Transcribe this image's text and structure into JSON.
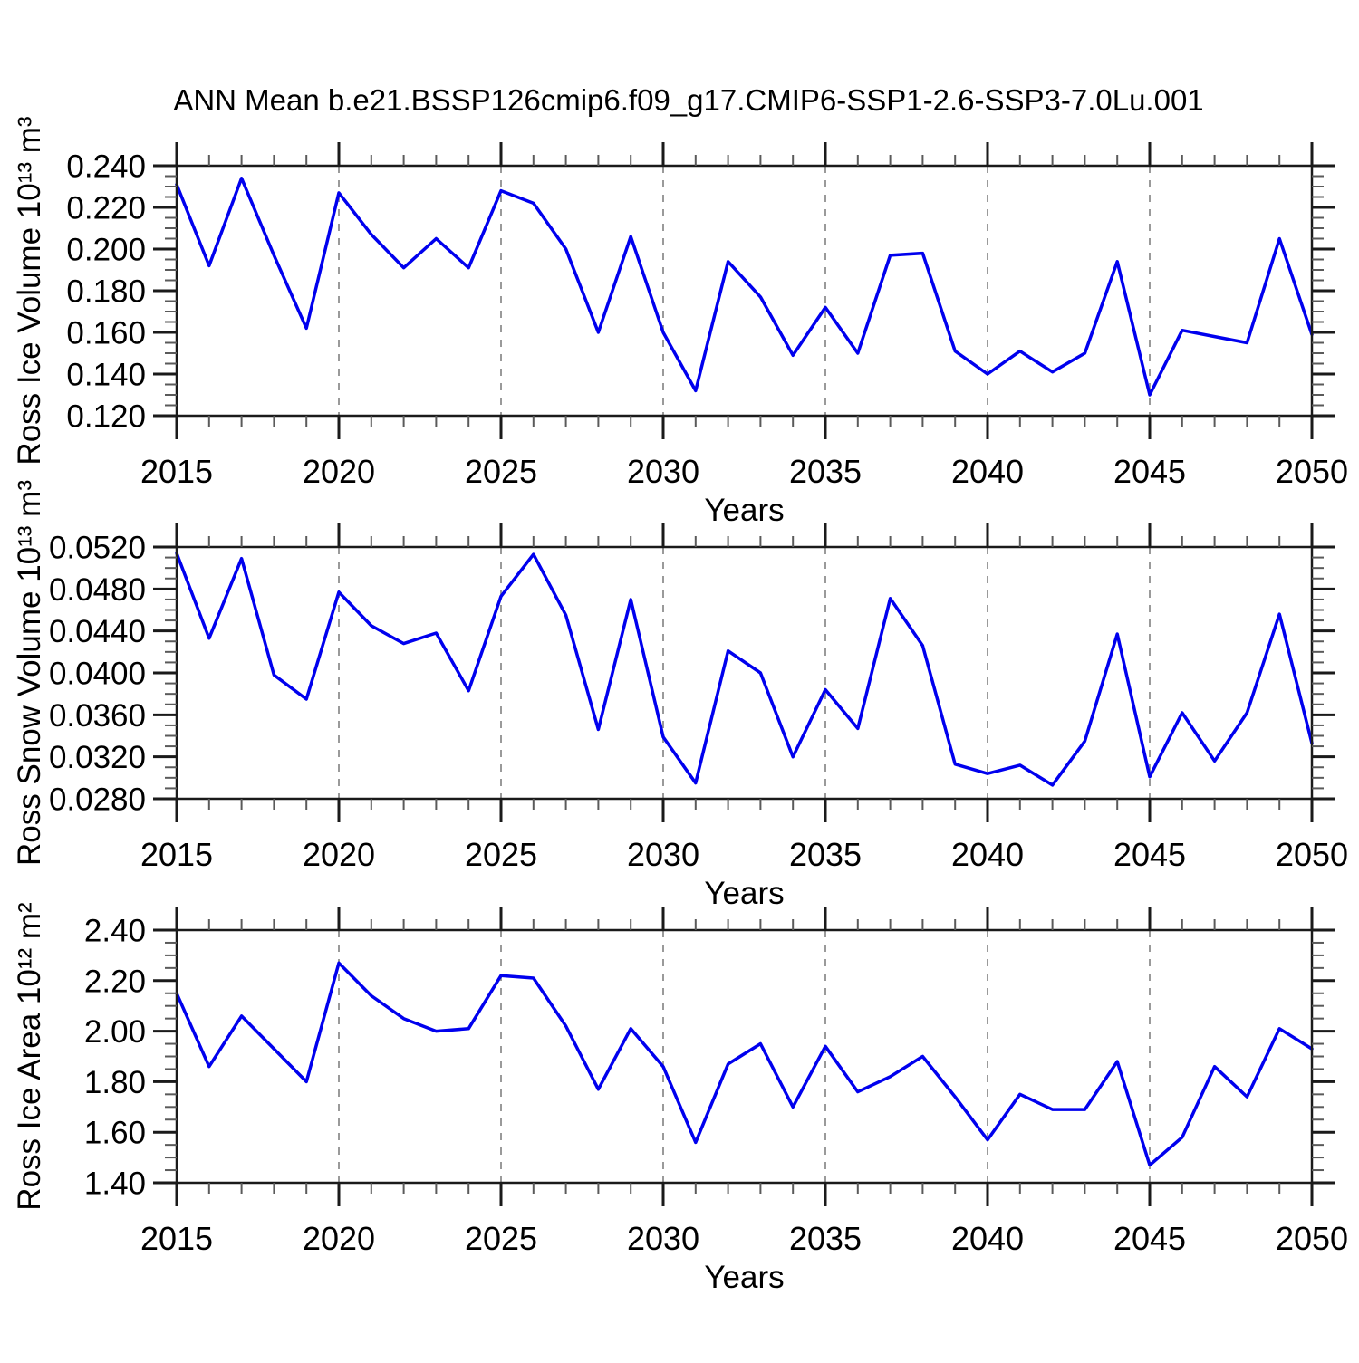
{
  "page": {
    "title": "ANN Mean b.e21.BSSP126cmip6.f09_g17.CMIP6-SSP1-2.6-SSP3-7.0Lu.001",
    "background": "#ffffff"
  },
  "style": {
    "line_color": "#0000ee",
    "axis_color": "#1a1a1a",
    "major_tick_color": "#1a1a1a",
    "minor_tick_color": "#5a5a5a",
    "grid_color": "#9a9a9a",
    "text_color": "#000000"
  },
  "chart_data": [
    {
      "id": "ross-ice-volume",
      "type": "line",
      "ylabel": "Ross Ice Volume 10¹³ m³",
      "xlabel": "Years",
      "x_start": 2015,
      "x_end": 2050,
      "x_major_step": 5,
      "x_minor_step": 1,
      "x_tick_labels": [
        "2015",
        "2020",
        "2025",
        "2030",
        "2035",
        "2040",
        "2045",
        "2050"
      ],
      "ylim": [
        0.12,
        0.24
      ],
      "y_major_step": 0.02,
      "y_minor_divs": 4,
      "y_tick_values": [
        0.24,
        0.22,
        0.2,
        0.18,
        0.16,
        0.14,
        0.12
      ],
      "y_tick_labels": [
        "0.240",
        "0.220",
        "0.200",
        "0.180",
        "0.160",
        "0.140",
        "0.120"
      ],
      "grid_x": [
        2020,
        2025,
        2030,
        2035,
        2040,
        2045
      ],
      "grid_style": "dashed",
      "values": [
        0.231,
        0.192,
        0.234,
        0.197,
        0.162,
        0.227,
        0.207,
        0.191,
        0.205,
        0.191,
        0.228,
        0.222,
        0.2,
        0.16,
        0.206,
        0.16,
        0.132,
        0.194,
        0.177,
        0.149,
        0.172,
        0.15,
        0.197,
        0.198,
        0.151,
        0.14,
        0.151,
        0.141,
        0.15,
        0.194,
        0.13,
        0.161,
        0.158,
        0.155,
        0.205,
        0.159
      ]
    },
    {
      "id": "ross-snow-volume",
      "type": "line",
      "ylabel": "Ross Snow Volume 10¹³ m³",
      "xlabel": "Years",
      "x_start": 2015,
      "x_end": 2050,
      "x_major_step": 5,
      "x_minor_step": 1,
      "x_tick_labels": [
        "2015",
        "2020",
        "2025",
        "2030",
        "2035",
        "2040",
        "2045",
        "2050"
      ],
      "ylim": [
        0.028,
        0.052
      ],
      "y_major_step": 0.004,
      "y_minor_divs": 4,
      "y_tick_values": [
        0.052,
        0.048,
        0.044,
        0.04,
        0.036,
        0.032,
        0.028
      ],
      "y_tick_labels": [
        "0.0520",
        "0.0480",
        "0.0440",
        "0.0400",
        "0.0360",
        "0.0320",
        "0.0280"
      ],
      "grid_x": [
        2020,
        2025,
        2030,
        2035,
        2040,
        2045
      ],
      "grid_style": "dashed",
      "values": [
        0.0514,
        0.0433,
        0.0509,
        0.0398,
        0.0375,
        0.0477,
        0.0445,
        0.0428,
        0.0438,
        0.0383,
        0.0473,
        0.0513,
        0.0455,
        0.0346,
        0.047,
        0.0339,
        0.0295,
        0.0421,
        0.04,
        0.032,
        0.0384,
        0.0347,
        0.0471,
        0.0426,
        0.0313,
        0.0304,
        0.0312,
        0.0293,
        0.0335,
        0.0437,
        0.0301,
        0.0362,
        0.0316,
        0.0362,
        0.0456,
        0.0333
      ]
    },
    {
      "id": "ross-ice-area",
      "type": "line",
      "ylabel": "Ross Ice Area 10¹² m²",
      "xlabel": "Years",
      "x_start": 2015,
      "x_end": 2050,
      "x_major_step": 5,
      "x_minor_step": 1,
      "x_tick_labels": [
        "2015",
        "2020",
        "2025",
        "2030",
        "2035",
        "2040",
        "2045",
        "2050"
      ],
      "ylim": [
        1.4,
        2.4
      ],
      "y_major_step": 0.2,
      "y_minor_divs": 4,
      "y_tick_values": [
        2.4,
        2.2,
        2.0,
        1.8,
        1.6,
        1.4
      ],
      "y_tick_labels": [
        "2.40",
        "2.20",
        "2.00",
        "1.80",
        "1.60",
        "1.40"
      ],
      "grid_x": [
        2020,
        2025,
        2030,
        2035,
        2040,
        2045
      ],
      "grid_style": "dashed",
      "values": [
        2.15,
        1.86,
        2.06,
        1.93,
        1.8,
        2.27,
        2.14,
        2.05,
        2.0,
        2.01,
        2.22,
        2.21,
        2.02,
        1.77,
        2.01,
        1.86,
        1.56,
        1.87,
        1.95,
        1.7,
        1.94,
        1.76,
        1.82,
        1.9,
        1.74,
        1.57,
        1.75,
        1.69,
        1.69,
        1.88,
        1.47,
        1.58,
        1.86,
        1.74,
        2.01,
        1.93
      ]
    }
  ]
}
